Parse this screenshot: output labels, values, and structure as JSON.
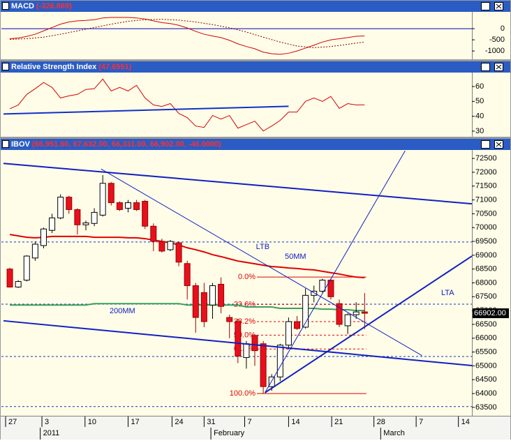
{
  "chart_data": [
    {
      "type": "line",
      "title": "MACD",
      "title_value": "(-326.869)",
      "xlim": [
        -0.25,
        55.2
      ],
      "ylim": [
        -1340,
        720
      ],
      "yticks": [
        0,
        -500,
        -1000
      ],
      "levels": [
        0
      ],
      "levels_color": "#0000c0",
      "levels_dashed": false,
      "series": [
        {
          "color": "#d40000",
          "dashed": false,
          "values": [
            -450,
            -420,
            -350,
            -250,
            -100,
            50,
            200,
            300,
            350,
            370,
            400,
            480,
            500,
            500,
            500,
            480,
            430,
            350,
            270,
            230,
            150,
            30,
            -120,
            -250,
            -330,
            -400,
            -520,
            -680,
            -800,
            -900,
            -1050,
            -1120,
            -1150,
            -1100,
            -1000,
            -870,
            -740,
            -600,
            -500,
            -450,
            -400,
            -340,
            -326.869
          ]
        },
        {
          "color": "#800000",
          "dashed": true,
          "values": [
            -480,
            -465,
            -450,
            -415,
            -380,
            -315,
            -250,
            -175,
            -100,
            -25,
            50,
            125,
            200,
            265,
            330,
            365,
            400,
            410,
            420,
            400,
            380,
            340,
            300,
            240,
            180,
            110,
            40,
            -55,
            -150,
            -265,
            -380,
            -490,
            -600,
            -690,
            -780,
            -815,
            -850,
            -825,
            -800,
            -750,
            -700,
            -650,
            -600
          ]
        }
      ]
    },
    {
      "type": "line",
      "title": "Relative Strength Index",
      "title_value": "(47.6551)",
      "xlim": [
        -0.25,
        55.2
      ],
      "ylim": [
        26.7,
        68.9
      ],
      "yticks": [
        60,
        50,
        40,
        30
      ],
      "series": [
        {
          "color": "#d40000",
          "dashed": false,
          "values": [
            45,
            47.6,
            54.7,
            58.5,
            62.7,
            59.4,
            52.3,
            53.7,
            54.7,
            58,
            58.5,
            65,
            57,
            59.4,
            57,
            60.8,
            52.3,
            47.6,
            46.6,
            48.5,
            41.9,
            39.1,
            33.4,
            32.5,
            40.5,
            38.1,
            40.5,
            32,
            34.4,
            36.7,
            30.1,
            33.4,
            37.2,
            42.8,
            42.8,
            50,
            52.3,
            50,
            53.3,
            45.3,
            48.5,
            47.6,
            47.6551
          ]
        }
      ],
      "trendlines": [
        {
          "x": [
            -0.25,
            33.5
          ],
          "y": [
            41.5,
            46.7
          ],
          "color": "#1030c8",
          "width": 2
        }
      ]
    },
    {
      "type": "candlestick",
      "title": "IBOV",
      "title_value": "(66,951.00, 67,632.00, 66,331.00, 66,902.00, -46.0000)",
      "xlim": [
        -0.25,
        55.2
      ],
      "ylim": [
        63220,
        72780
      ],
      "yticks": [
        72500,
        72000,
        71500,
        71000,
        70500,
        70000,
        69500,
        69000,
        68500,
        68000,
        67500,
        67000,
        66500,
        66000,
        65500,
        65000,
        64500,
        64000,
        63500
      ],
      "xticks": [
        {
          "value": 0,
          "label": "27"
        },
        {
          "value": 4.3,
          "label": "3"
        },
        {
          "value": 9.4,
          "label": "10"
        },
        {
          "value": 14.5,
          "label": "17"
        },
        {
          "value": 19.7,
          "label": "24"
        },
        {
          "value": 23.5,
          "label": "31"
        },
        {
          "value": 28.3,
          "label": "7"
        },
        {
          "value": 33.5,
          "label": "14"
        },
        {
          "value": 38.6,
          "label": "21"
        },
        {
          "value": 43.6,
          "label": "28"
        },
        {
          "value": 48.6,
          "label": "7"
        },
        {
          "value": 53.6,
          "label": "14"
        }
      ],
      "period_labels": [
        {
          "value": 4.1,
          "label": "2011"
        },
        {
          "value": 24.3,
          "label": "February"
        },
        {
          "value": 44.4,
          "label": "March"
        }
      ],
      "up_color": "#ffffff",
      "down_color": "#e8101c",
      "open": [
        68500,
        67850,
        68100,
        68900,
        69350,
        69900,
        70350,
        71100,
        70650,
        70100,
        70150,
        70450,
        71600,
        70900,
        70700,
        70900,
        70950,
        70050,
        69500,
        69200,
        69450,
        68700,
        67900,
        67650,
        67200,
        67950,
        66750,
        66600,
        65300,
        66100,
        65800,
        64250,
        64600,
        65750,
        66600,
        66400,
        67550,
        67700,
        68100,
        67250,
        66450,
        66850,
        66951
      ],
      "high": [
        68550,
        68100,
        69000,
        69500,
        70000,
        70500,
        71200,
        71150,
        70700,
        70250,
        70700,
        71900,
        71650,
        70950,
        71000,
        71000,
        71000,
        70150,
        69600,
        69550,
        69500,
        68800,
        68000,
        68000,
        68000,
        68200,
        66850,
        66700,
        65900,
        66150,
        65900,
        64700,
        65800,
        66750,
        66800,
        67800,
        67900,
        68150,
        68150,
        67400,
        66900,
        67300,
        67632
      ],
      "low": [
        67830,
        67820,
        68050,
        68800,
        69250,
        69800,
        70300,
        70500,
        69750,
        69900,
        70050,
        70400,
        70800,
        70600,
        70550,
        70600,
        69950,
        69150,
        69100,
        69150,
        68600,
        67400,
        66200,
        66400,
        66700,
        66900,
        66000,
        65100,
        64900,
        65000,
        64000,
        64100,
        64450,
        65600,
        66300,
        66350,
        67300,
        67650,
        67400,
        66400,
        66150,
        66700,
        66331
      ],
      "close": [
        67850,
        68050,
        68970,
        69400,
        69950,
        70350,
        71100,
        70650,
        70100,
        70170,
        70550,
        71600,
        70900,
        70650,
        70900,
        70650,
        70050,
        69500,
        69150,
        69500,
        68750,
        67900,
        66750,
        66600,
        67900,
        67150,
        66600,
        65350,
        65800,
        65550,
        64250,
        64600,
        65750,
        66600,
        66350,
        67550,
        67700,
        68100,
        67500,
        66500,
        66850,
        66950,
        66902
      ],
      "last_price_label": "66902.00",
      "overlays": [
        {
          "label": "50MM",
          "color": "#e00000",
          "values": [
            69750,
            69700,
            69650,
            69630,
            69650,
            69680,
            69680,
            69680,
            69680,
            69680,
            69650,
            69650,
            69650,
            69650,
            69630,
            69630,
            69600,
            69550,
            69500,
            69450,
            69370,
            69270,
            69200,
            69120,
            69020,
            68950,
            68870,
            68790,
            68740,
            68690,
            68640,
            68590,
            68570,
            68540,
            68520,
            68490,
            68470,
            68420,
            68370,
            68320,
            68260,
            68210,
            68190
          ]
        },
        {
          "label": "200MM",
          "color": "#3aa05a",
          "values": [
            67200,
            67200,
            67200,
            67200,
            67200,
            67200,
            67200,
            67200,
            67200,
            67200,
            67250,
            67250,
            67250,
            67250,
            67250,
            67250,
            67250,
            67250,
            67250,
            67250,
            67250,
            67200,
            67200,
            67200,
            67200,
            67200,
            67200,
            67200,
            67130,
            67130,
            67130,
            67130,
            67080,
            67080,
            67080,
            67080,
            67080,
            67050,
            67050,
            67030,
            67030,
            67000,
            67000
          ]
        }
      ],
      "levels": [
        69480,
        67230,
        65340,
        63530
      ],
      "levels_color": "#1030c8",
      "levels_dashed": true,
      "fib": {
        "x": [
          29.75,
          42.7
        ],
        "color": "#e00000",
        "levels": [
          {
            "value": 68210,
            "label": "0.0%"
          },
          {
            "value": 67220,
            "label": "23.6%"
          },
          {
            "value": 66600,
            "label": "38.2%"
          },
          {
            "value": 66110,
            "label": "50.0%"
          },
          {
            "value": 65610,
            "label": "61.8%"
          },
          {
            "value": 64000,
            "label": "100.0%"
          }
        ]
      },
      "trendlines": [
        {
          "x": [
            -0.25,
            55.2
          ],
          "y": [
            72320,
            70860
          ],
          "color": "#1020c0",
          "width": 2
        },
        {
          "x": [
            -0.25,
            55.2
          ],
          "y": [
            66630,
            65010
          ],
          "color": "#1020c0",
          "width": 2
        },
        {
          "x": [
            11.3,
            49.3
          ],
          "y": [
            72120,
            65370
          ],
          "color": "#1020c0",
          "width": 1,
          "label": "LTB"
        },
        {
          "x": [
            30.7,
            55.2
          ],
          "y": [
            64030,
            68970
          ],
          "color": "#1020c0",
          "width": 2,
          "label": "LTA"
        },
        {
          "x": [
            30.7,
            47.3
          ],
          "y": [
            64030,
            72780
          ],
          "color": "#1020c0",
          "width": 1
        }
      ]
    }
  ]
}
